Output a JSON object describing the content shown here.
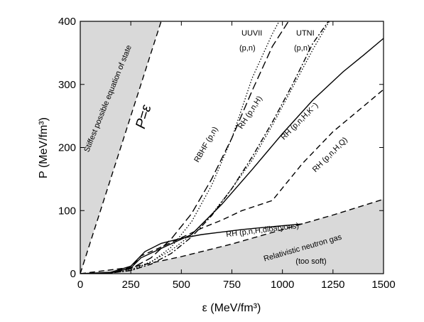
{
  "chart_data": {
    "type": "line",
    "xlabel": "ε (MeV/fm³)",
    "ylabel": "P (MeV/fm³)",
    "xlim": [
      0,
      1500
    ],
    "ylim": [
      0,
      400
    ],
    "xticks": [
      0,
      250,
      500,
      750,
      1000,
      1250,
      1500
    ],
    "yticks": [
      0,
      100,
      200,
      300,
      400
    ],
    "grid": false,
    "legend": "none",
    "colors": {
      "line": "#000000",
      "shade": "#d9d9d9"
    },
    "regions": [
      {
        "name": "Stiffest possible equation of state",
        "boundary": [
          [
            0,
            0
          ],
          [
            400,
            400
          ]
        ],
        "side": "upper-left"
      },
      {
        "name": "Relativistic neutron gas",
        "sublabel": "(too soft)",
        "boundary": [
          [
            0,
            0
          ],
          [
            250,
            10
          ],
          [
            500,
            27
          ],
          [
            750,
            47
          ],
          [
            1000,
            70
          ],
          [
            1250,
            93
          ],
          [
            1500,
            118
          ]
        ],
        "side": "lower-right"
      }
    ],
    "series": [
      {
        "name": "P=ε",
        "style": "dashed",
        "x": [
          0,
          400
        ],
        "y": [
          0,
          400
        ]
      },
      {
        "name": "Relativistic neutron gas",
        "style": "dashed",
        "x": [
          0,
          250,
          500,
          750,
          1000,
          1250,
          1500
        ],
        "y": [
          0,
          10,
          27,
          47,
          70,
          93,
          118
        ]
      },
      {
        "name": "UUVII (p,n)",
        "style": "dotted",
        "x": [
          0,
          150,
          250,
          350,
          450,
          550,
          650,
          750,
          850,
          950,
          1000
        ],
        "y": [
          0,
          1,
          5,
          18,
          42,
          82,
          140,
          215,
          310,
          380,
          410
        ]
      },
      {
        "name": "UTNI (p,n)",
        "style": "dashdot",
        "x": [
          0,
          150,
          250,
          350,
          450,
          550,
          650,
          750,
          850,
          950,
          1050,
          1150,
          1250
        ],
        "y": [
          0,
          1,
          5,
          15,
          32,
          58,
          92,
          135,
          185,
          240,
          300,
          365,
          410
        ]
      },
      {
        "name": "RBHF (p,n)",
        "style": "longdash",
        "x": [
          0,
          150,
          250,
          350,
          450,
          550,
          650,
          750,
          850,
          950,
          1050
        ],
        "y": [
          0,
          1,
          8,
          25,
          55,
          95,
          150,
          215,
          290,
          360,
          410
        ]
      },
      {
        "name": "RH (p,n,H)",
        "style": "dotted",
        "x": [
          0,
          150,
          250,
          350,
          450,
          550,
          650,
          750,
          850,
          950,
          1050,
          1150,
          1250
        ],
        "y": [
          0,
          1,
          6,
          19,
          37,
          62,
          94,
          135,
          180,
          235,
          295,
          355,
          410
        ]
      },
      {
        "name": "RH (p,n,H,K⁻)",
        "style": "solid",
        "x": [
          0,
          150,
          250,
          300,
          400,
          550,
          700,
          850,
          1000,
          1150,
          1300,
          1400,
          1500
        ],
        "y": [
          0,
          1,
          9,
          25,
          40,
          62,
          110,
          165,
          222,
          275,
          320,
          346,
          373
        ]
      },
      {
        "name": "RH (p,n,H,Q)",
        "style": "dashed",
        "x": [
          0,
          150,
          250,
          300,
          400,
          500,
          600,
          700,
          800,
          950,
          1100,
          1250,
          1400,
          1500
        ],
        "y": [
          0,
          1,
          10,
          28,
          42,
          57,
          72,
          85,
          100,
          116,
          175,
          225,
          265,
          292
        ]
      },
      {
        "name": "RH (p,n,H,dibaryons)",
        "style": "solid",
        "x": [
          0,
          150,
          250,
          320,
          400,
          500,
          600,
          700,
          800,
          900,
          1000,
          1100
        ],
        "y": [
          0,
          2,
          12,
          35,
          48,
          56,
          62,
          66,
          70,
          73,
          76,
          79
        ]
      }
    ],
    "labels": {
      "stiffest": "Stiffest possible equation of state",
      "p_eq_e": "P=ε",
      "uuvii_1": "UUVII",
      "uuvii_2": "(p,n)",
      "utni_1": "UTNI",
      "utni_2": "(p,n)",
      "rbhf": "RBHF (p,n)",
      "rh_pnh": "RH (p,n,H)",
      "rh_k": "RH (p,n,H,K⁻)",
      "rh_q": "RH (p,n,H,Q)",
      "rh_dib": "RH (p,n,H,dibaryons)",
      "neutron_gas": "Relativistic neutron gas",
      "too_soft": "(too soft)"
    }
  }
}
